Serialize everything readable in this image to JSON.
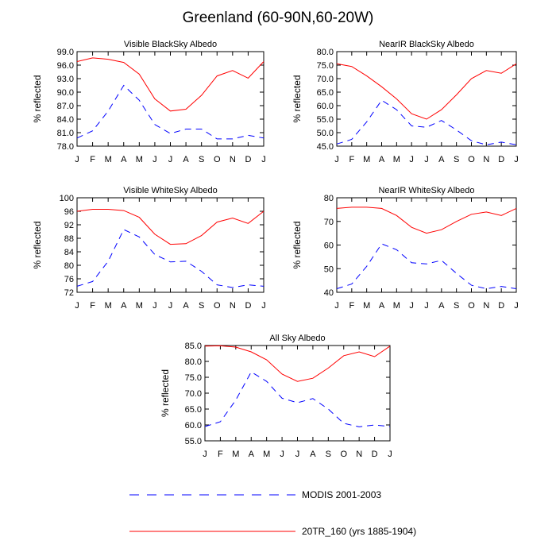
{
  "title": "Greenland (60-90N,60-20W)",
  "legend": [
    {
      "label": "MODIS 2001-2003",
      "color": "#0000ff",
      "dash": "dashed"
    },
    {
      "label": "20TR_160 (yrs 1885-1904)",
      "color": "#ff0000",
      "dash": "solid"
    }
  ],
  "chart_data": [
    {
      "type": "line",
      "title": "Visible BlackSky Albedo",
      "ylabel": "% reflected",
      "categories": [
        "J",
        "F",
        "M",
        "A",
        "M",
        "J",
        "J",
        "A",
        "S",
        "O",
        "N",
        "D",
        "J"
      ],
      "ylim": [
        78.0,
        99.0
      ],
      "yticks": [
        "78.0",
        "81.0",
        "84.0",
        "87.0",
        "90.0",
        "93.0",
        "96.0",
        "99.0"
      ],
      "series": [
        {
          "name": "20TR_160 (yrs 1885-1904)",
          "color": "#ff0000",
          "values": [
            96.8,
            97.6,
            97.3,
            96.6,
            94.0,
            88.5,
            85.8,
            86.2,
            89.3,
            93.6,
            94.8,
            93.1,
            96.8
          ]
        },
        {
          "name": "MODIS 2001-2003",
          "color": "#0000ff",
          "values": [
            79.8,
            81.4,
            85.8,
            91.5,
            88.2,
            82.8,
            80.8,
            81.8,
            81.8,
            79.6,
            79.6,
            80.4,
            79.8
          ]
        }
      ]
    },
    {
      "type": "line",
      "title": "NearIR BlackSky Albedo",
      "ylabel": "% reflected",
      "categories": [
        "J",
        "F",
        "M",
        "A",
        "M",
        "J",
        "J",
        "A",
        "S",
        "O",
        "N",
        "D",
        "J"
      ],
      "ylim": [
        45.0,
        80.0
      ],
      "yticks": [
        "45.0",
        "50.0",
        "55.0",
        "60.0",
        "65.0",
        "70.0",
        "75.0",
        "80.0"
      ],
      "series": [
        {
          "name": "20TR_160 (yrs 1885-1904)",
          "color": "#ff0000",
          "values": [
            75.5,
            74.5,
            71.0,
            67.0,
            62.5,
            57.0,
            55.0,
            58.5,
            64.0,
            70.0,
            73.0,
            72.0,
            75.5
          ]
        },
        {
          "name": "MODIS 2001-2003",
          "color": "#0000ff",
          "values": [
            45.8,
            47.5,
            54.0,
            62.0,
            58.5,
            52.5,
            52.0,
            54.5,
            51.0,
            47.0,
            45.5,
            46.5,
            45.5
          ]
        }
      ]
    },
    {
      "type": "line",
      "title": "Visible WhiteSky Albedo",
      "ylabel": "% reflected",
      "categories": [
        "J",
        "F",
        "M",
        "A",
        "M",
        "J",
        "J",
        "A",
        "S",
        "O",
        "N",
        "D",
        "J"
      ],
      "ylim": [
        72,
        100
      ],
      "yticks": [
        "72",
        "76",
        "80",
        "84",
        "88",
        "92",
        "96",
        "100"
      ],
      "series": [
        {
          "name": "20TR_160 (yrs 1885-1904)",
          "color": "#ff0000",
          "values": [
            96.0,
            96.6,
            96.6,
            96.2,
            94.2,
            89.2,
            86.2,
            86.4,
            88.8,
            92.8,
            94.0,
            92.4,
            96.0
          ]
        },
        {
          "name": "MODIS 2001-2003",
          "color": "#0000ff",
          "values": [
            73.8,
            75.2,
            81.2,
            90.6,
            88.4,
            83.2,
            81.0,
            81.2,
            78.2,
            74.2,
            73.4,
            74.2,
            73.8
          ]
        }
      ]
    },
    {
      "type": "line",
      "title": "NearIR WhiteSky Albedo",
      "ylabel": "% reflected",
      "categories": [
        "J",
        "F",
        "M",
        "A",
        "M",
        "J",
        "J",
        "A",
        "S",
        "O",
        "N",
        "D",
        "J"
      ],
      "ylim": [
        40,
        80
      ],
      "yticks": [
        "40",
        "50",
        "60",
        "70",
        "80"
      ],
      "series": [
        {
          "name": "20TR_160 (yrs 1885-1904)",
          "color": "#ff0000",
          "values": [
            75.5,
            76.0,
            76.0,
            75.5,
            72.5,
            67.5,
            65.0,
            66.5,
            70.0,
            73.0,
            74.0,
            72.5,
            75.5
          ]
        },
        {
          "name": "MODIS 2001-2003",
          "color": "#0000ff",
          "values": [
            41.5,
            43.5,
            51.0,
            60.5,
            58.0,
            52.5,
            52.0,
            53.5,
            48.0,
            43.0,
            41.5,
            42.5,
            41.5
          ]
        }
      ]
    },
    {
      "type": "line",
      "title": "All Sky Albedo",
      "ylabel": "% reflected",
      "categories": [
        "J",
        "F",
        "M",
        "A",
        "M",
        "J",
        "J",
        "A",
        "S",
        "O",
        "N",
        "D",
        "J"
      ],
      "ylim": [
        55.0,
        85.0
      ],
      "yticks": [
        "55.0",
        "60.0",
        "65.0",
        "70.0",
        "75.0",
        "80.0",
        "85.0"
      ],
      "series": [
        {
          "name": "20TR_160 (yrs 1885-1904)",
          "color": "#ff0000",
          "values": [
            84.8,
            84.9,
            84.5,
            83.0,
            80.5,
            76.0,
            73.7,
            74.7,
            77.9,
            81.8,
            83.0,
            81.5,
            84.8
          ]
        },
        {
          "name": "MODIS 2001-2003",
          "color": "#0000ff",
          "values": [
            59.5,
            61.0,
            67.8,
            76.7,
            73.7,
            68.4,
            67.0,
            68.3,
            65.0,
            60.5,
            59.4,
            60.0,
            59.5
          ]
        }
      ]
    }
  ]
}
